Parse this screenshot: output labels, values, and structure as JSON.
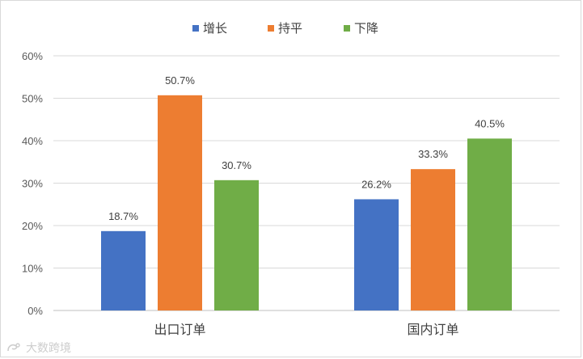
{
  "chart_data": {
    "type": "bar",
    "categories": [
      "出口订单",
      "国内订单"
    ],
    "series": [
      {
        "name": "增长",
        "color": "#4472c4",
        "values": [
          18.7,
          26.2
        ],
        "labels": [
          "18.7%",
          "26.2%"
        ]
      },
      {
        "name": "持平",
        "color": "#ed7d31",
        "values": [
          50.7,
          33.3
        ],
        "labels": [
          "50.7%",
          "33.3%"
        ]
      },
      {
        "name": "下降",
        "color": "#70ad47",
        "values": [
          30.7,
          40.5
        ],
        "labels": [
          "30.7%",
          "40.5%"
        ]
      }
    ],
    "ylim": [
      0,
      60
    ],
    "yticks": [
      "0%",
      "10%",
      "20%",
      "30%",
      "40%",
      "50%",
      "60%"
    ],
    "grid": true,
    "legend_position": "top-center",
    "title": "",
    "xlabel": "",
    "ylabel": ""
  },
  "watermark": {
    "text": "大数跨境",
    "icon": "brand-logo-icon"
  }
}
